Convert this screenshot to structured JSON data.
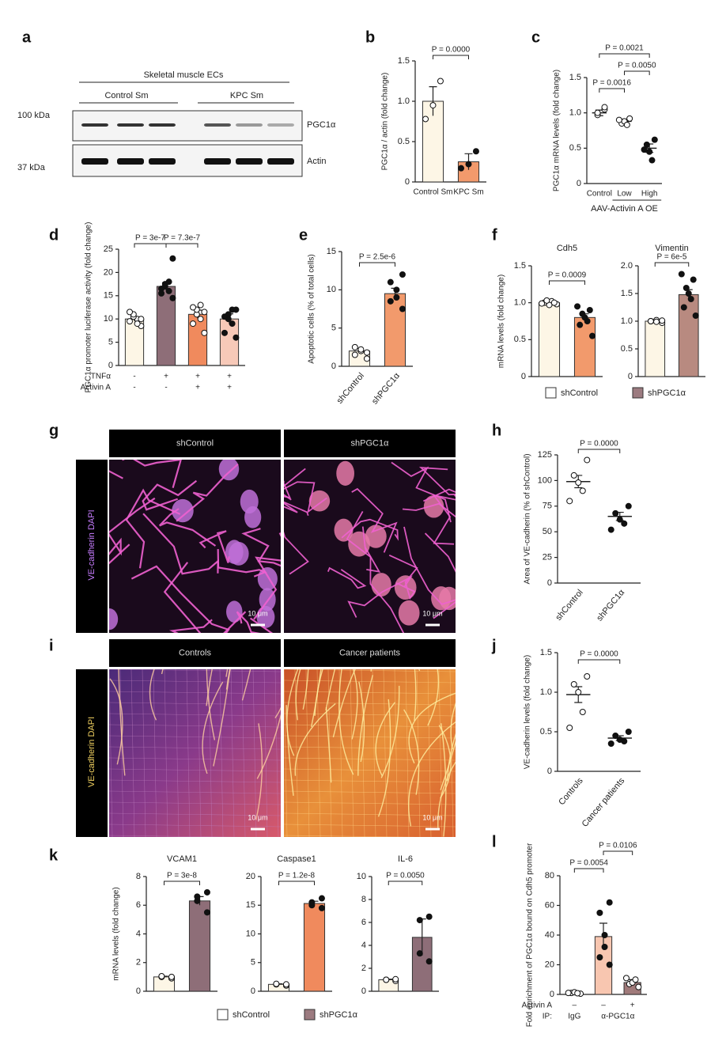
{
  "figure": {
    "blot": {
      "panel": "a",
      "title": "Skeletal muscle ECs",
      "groups": [
        "Control Sm",
        "KPC Sm"
      ],
      "markers": [
        "100 kDa",
        "37 kDa"
      ],
      "proteins": [
        "PGC1α",
        "Actin"
      ]
    },
    "images": [
      {
        "panel": "g",
        "side_label": "VE-cadherin DAPI",
        "headers": [
          "shControl",
          "shPGC1α"
        ],
        "scale_labels": [
          "10 μm",
          "10 μm"
        ]
      },
      {
        "panel": "i",
        "side_label": "VE-cadherin DAPI",
        "headers": [
          "Controls",
          "Cancer patients"
        ],
        "scale_labels": [
          "10 μm",
          "10 μm"
        ]
      }
    ],
    "legends": [
      {
        "items": [
          {
            "label": "shControl",
            "color": "#ffffff"
          },
          {
            "label": "shPGC1α",
            "color": "#9c7b80"
          }
        ]
      },
      {
        "items": [
          {
            "label": "shControl",
            "color": "#ffffff"
          },
          {
            "label": "shPGC1α",
            "color": "#9c7b80"
          }
        ]
      }
    ]
  },
  "chart_data": [
    {
      "type": "bar",
      "panel": "b",
      "ylabel": "PGC1α / actin (fold change)",
      "categories": [
        "Control Sm",
        "KPC Sm"
      ],
      "values": [
        1.0,
        0.25
      ],
      "errors": [
        0.18,
        0.1
      ],
      "points": [
        [
          1.25,
          0.95,
          0.78
        ],
        [
          0.38,
          0.22,
          0.17
        ]
      ],
      "colors": [
        "#fdf6e6",
        "#f29a6c"
      ],
      "point_colors": [
        "#ffffff",
        "#111111"
      ],
      "ylim": [
        0,
        1.5
      ],
      "yticks": [
        0,
        0.5,
        {
          "value": 1,
          "label": "1.0"
        },
        1.5
      ],
      "pvalues": [
        "P = 0.0000"
      ]
    },
    {
      "type": "dot",
      "panel": "c",
      "ylabel": "PGC1α mRNA levels (fold change)",
      "categories": [
        "Control",
        "Low",
        "High"
      ],
      "group_label": "AAV-Activin A OE",
      "values": [
        1.0,
        0.88,
        0.5
      ],
      "errors": [
        0.04,
        0.03,
        0.06
      ],
      "points": [
        [
          1.05,
          0.97,
          1.0,
          1.08
        ],
        [
          0.92,
          0.85,
          0.88,
          0.83,
          0.9
        ],
        [
          0.62,
          0.55,
          0.45,
          0.33,
          0.48
        ]
      ],
      "point_colors": [
        "#ffffff",
        "#ffffff",
        "#111111"
      ],
      "ylim": [
        0,
        1.5
      ],
      "yticks": [
        0,
        0.5,
        {
          "value": 1,
          "label": "1.0"
        },
        1.5
      ],
      "pvalues": [
        "P = 0.0016",
        "P = 0.0050",
        "P = 0.0021"
      ]
    },
    {
      "type": "bar",
      "panel": "d",
      "ylabel": "PGC1α promoter luciferase activity (fold change)",
      "categories": [
        null,
        null,
        null,
        null
      ],
      "rows": [
        {
          "label": "TNFα",
          "marks": [
            "-",
            "+",
            "+",
            "+"
          ]
        },
        {
          "label": "Activin A",
          "marks": [
            "-",
            "-",
            "+",
            "+"
          ]
        }
      ],
      "values": [
        10,
        17,
        11,
        10
      ],
      "errors": [
        0.5,
        0.8,
        0.9,
        1.1
      ],
      "points": [
        [
          8.5,
          9.5,
          10,
          10.5,
          11,
          9,
          11.5,
          10
        ],
        [
          14.5,
          15.5,
          16,
          17,
          17.5,
          18,
          16.5,
          23
        ],
        [
          7,
          9,
          10,
          11,
          12,
          13,
          12.5,
          11.5
        ],
        [
          6,
          7,
          9,
          10,
          11,
          12,
          10.5,
          12
        ]
      ],
      "colors": [
        "#fdf6e6",
        "#8e6e78",
        "#f08a5d",
        "#f7c9b8"
      ],
      "point_colors": [
        "#ffffff",
        "#111111",
        "#ffffff",
        "#111111"
      ],
      "ylim": [
        0,
        25
      ],
      "yticks": [
        0,
        5,
        10,
        15,
        20,
        25
      ],
      "pvalues": [
        "P = 3e-7",
        "P = 7.3e-7"
      ]
    },
    {
      "type": "bar",
      "panel": "e",
      "ylabel": "Apoptotic cells (% of total cells)",
      "categories": [
        "shControl",
        "shPGC1α"
      ],
      "values": [
        2,
        9.5
      ],
      "errors": [
        0.3,
        0.7
      ],
      "points": [
        [
          1,
          1.5,
          2,
          2.2,
          2.5,
          1.8
        ],
        [
          7.5,
          8.5,
          9,
          10,
          11,
          12
        ]
      ],
      "colors": [
        "#fdf6e6",
        "#f29a6c"
      ],
      "point_colors": [
        "#ffffff",
        "#111111"
      ],
      "ylim": [
        0,
        15
      ],
      "yticks": [
        0,
        5,
        10,
        15
      ],
      "pvalues": [
        "P = 2.5e-6"
      ]
    },
    {
      "type": "bar",
      "panel": "f",
      "title": "Cdh5",
      "ylabel": "mRNA levels (fold change)",
      "categories": [
        null,
        null
      ],
      "values": [
        1.0,
        0.8
      ],
      "errors": [
        0.02,
        0.05
      ],
      "points": [
        [
          0.98,
          1.0,
          1.02,
          0.97,
          1.03,
          1.0,
          0.99
        ],
        [
          0.55,
          0.7,
          0.75,
          0.8,
          0.85,
          0.9,
          0.95
        ]
      ],
      "colors": [
        "#fdf6e6",
        "#f29a6c"
      ],
      "point_colors": [
        "#ffffff",
        "#111111"
      ],
      "ylim": [
        0,
        1.5
      ],
      "yticks": [
        0,
        0.5,
        {
          "value": 1,
          "label": "1.0"
        },
        1.5
      ],
      "pvalues": [
        "P = 0.0009"
      ]
    },
    {
      "type": "bar",
      "title": "Vimentin",
      "categories": [
        null,
        null
      ],
      "values": [
        1.0,
        1.48
      ],
      "errors": [
        0.01,
        0.09
      ],
      "points": [
        [
          0.97,
          1.0,
          1.02,
          0.99,
          1.0,
          1.01
        ],
        [
          1.1,
          1.25,
          1.4,
          1.5,
          1.6,
          1.75,
          1.85
        ]
      ],
      "colors": [
        "#fdf6e6",
        "#b88a80"
      ],
      "point_colors": [
        "#ffffff",
        "#111111"
      ],
      "ylim": [
        0,
        2
      ],
      "yticks": [
        0,
        0.5,
        {
          "value": 1,
          "label": "1.0"
        },
        1.5,
        {
          "value": 2,
          "label": "2.0"
        }
      ],
      "pvalues": [
        "P = 6e-5"
      ]
    },
    {
      "type": "dot",
      "panel": "h",
      "ylabel": "Area of VE-cadherin (% of shControl)",
      "categories": [
        "shControl",
        "shPGC1α"
      ],
      "values": [
        99,
        65
      ],
      "errors": [
        6,
        4
      ],
      "points": [
        [
          120,
          105,
          98,
          90,
          80
        ],
        [
          75,
          68,
          62,
          58,
          52
        ]
      ],
      "point_colors": [
        "#ffffff",
        "#111111"
      ],
      "ylim": [
        0,
        125
      ],
      "yticks": [
        0,
        25,
        50,
        75,
        100,
        125
      ],
      "pvalues": [
        "P = 0.0000"
      ]
    },
    {
      "type": "dot",
      "panel": "j",
      "ylabel": "VE-cadherin levels (fold change)",
      "categories": [
        "Controls",
        "Cancer patients"
      ],
      "values": [
        0.97,
        0.42
      ],
      "errors": [
        0.1,
        0.03
      ],
      "points": [
        [
          1.2,
          1.1,
          1.0,
          0.75,
          0.55
        ],
        [
          0.5,
          0.45,
          0.4,
          0.38,
          0.35
        ]
      ],
      "point_colors": [
        "#ffffff",
        "#111111"
      ],
      "ylim": [
        0,
        1.5
      ],
      "yticks": [
        0,
        0.5,
        {
          "value": 1,
          "label": "1.0"
        },
        1.5
      ],
      "pvalues": [
        "P = 0.0000"
      ]
    },
    {
      "type": "bar",
      "panel": "k",
      "title": "VCAM1",
      "ylabel": "mRNA levels (fold change)",
      "categories": [
        null,
        null
      ],
      "values": [
        1,
        6.3
      ],
      "errors": [
        0.05,
        0.3
      ],
      "points": [
        [
          0.9,
          1.0,
          1.05,
          1.0
        ],
        [
          5.5,
          6.3,
          6.6,
          6.9
        ]
      ],
      "colors": [
        "#fdf6e6",
        "#8e6e78"
      ],
      "point_colors": [
        "#ffffff",
        "#111111"
      ],
      "ylim": [
        0,
        8
      ],
      "yticks": [
        0,
        2,
        4,
        6,
        8
      ],
      "pvalues": [
        "P = 3e-8"
      ]
    },
    {
      "type": "bar",
      "title": "Caspase1",
      "categories": [
        null,
        null
      ],
      "values": [
        1.2,
        15.3
      ],
      "errors": [
        0.1,
        0.4
      ],
      "points": [
        [
          1.0,
          1.2,
          1.3,
          1.2
        ],
        [
          14.5,
          15,
          15.5,
          16.2
        ]
      ],
      "colors": [
        "#fdf6e6",
        "#f08a5d"
      ],
      "point_colors": [
        "#ffffff",
        "#111111"
      ],
      "ylim": [
        0,
        20
      ],
      "yticks": [
        0,
        5,
        10,
        15,
        20
      ],
      "pvalues": [
        "P = 1.2e-8"
      ]
    },
    {
      "type": "bar",
      "title": "IL-6",
      "categories": [
        null,
        null
      ],
      "values": [
        1,
        4.7
      ],
      "errors": [
        0.05,
        1.6
      ],
      "points": [
        [
          0.9,
          1.0,
          1.0,
          1.05
        ],
        [
          2.6,
          3.3,
          6.2,
          6.5
        ]
      ],
      "colors": [
        "#fdf6e6",
        "#8e6e78"
      ],
      "point_colors": [
        "#ffffff",
        "#111111"
      ],
      "ylim": [
        0,
        10
      ],
      "yticks": [
        0,
        2,
        4,
        6,
        8,
        10
      ],
      "pvalues": [
        "P = 0.0050"
      ]
    },
    {
      "type": "bar",
      "panel": "l",
      "ylabel": "Fold enrichment of PGC1α bound on Cdh5 promoter",
      "categories": [
        null,
        null,
        null
      ],
      "rows": [
        {
          "label": "Activin A",
          "marks": [
            "–",
            "–",
            "+"
          ]
        },
        {
          "label": "IP:",
          "marks": [
            "IgG",
            "α-PGC1α"
          ]
        }
      ],
      "values": [
        1,
        39,
        8
      ],
      "errors": [
        0.3,
        9,
        2
      ],
      "points": [
        [
          0.5,
          1,
          1.5,
          0.8,
          1
        ],
        [
          20,
          25,
          32,
          40,
          55,
          62
        ],
        [
          5,
          7,
          8,
          10,
          11
        ]
      ],
      "colors": [
        "#fdf6e6",
        "#f8c6b0",
        "#a07a7a"
      ],
      "point_colors": [
        "#ffffff",
        "#111111",
        "#ffffff"
      ],
      "ylim": [
        0,
        80
      ],
      "yticks": [
        0,
        20,
        40,
        60,
        80
      ],
      "pvalues": [
        "P = 0.0054",
        "P = 0.0106"
      ]
    }
  ]
}
